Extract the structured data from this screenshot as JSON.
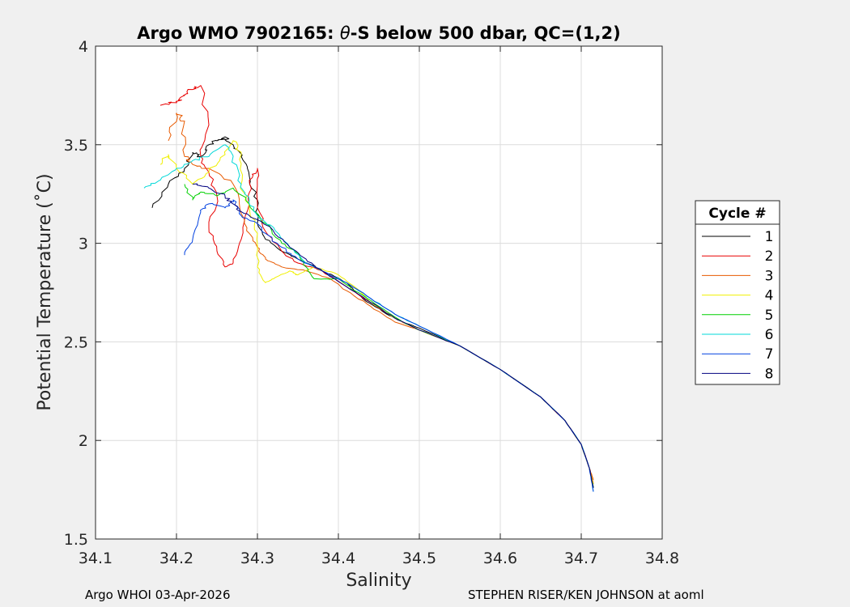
{
  "chart_data": {
    "type": "line",
    "title": "Argo WMO 7902165: θ-S below 500 dbar,  QC=(1,2)",
    "title_parts": {
      "prefix": "Argo WMO 7902165: ",
      "theta": "θ",
      "suffix": "-S below 500 dbar,  QC=(1,2)"
    },
    "xlabel": "Salinity",
    "ylabel": "Potential Temperature (˚C)",
    "xlim": [
      34.1,
      34.8
    ],
    "ylim": [
      1.5,
      4
    ],
    "xticks": [
      34.1,
      34.2,
      34.3,
      34.4,
      34.5,
      34.6,
      34.7,
      34.8
    ],
    "xtick_labels": [
      "34.1",
      "34.2",
      "34.3",
      "34.4",
      "34.5",
      "34.6",
      "34.7",
      "34.8"
    ],
    "yticks": [
      1.5,
      2,
      2.5,
      3,
      3.5,
      4
    ],
    "ytick_labels": [
      "1.5",
      "2",
      "2.5",
      "3",
      "3.5",
      "4"
    ],
    "grid": true,
    "legend": {
      "title": "Cycle #",
      "placement": "right"
    },
    "series": [
      {
        "name": "1",
        "color": "#000000",
        "points": [
          [
            34.17,
            3.18
          ],
          [
            34.19,
            3.3
          ],
          [
            34.21,
            3.38
          ],
          [
            34.22,
            3.46
          ],
          [
            34.23,
            3.44
          ],
          [
            34.24,
            3.5
          ],
          [
            34.25,
            3.52
          ],
          [
            34.26,
            3.54
          ],
          [
            34.27,
            3.5
          ],
          [
            34.28,
            3.44
          ],
          [
            34.29,
            3.34
          ],
          [
            34.3,
            3.22
          ],
          [
            34.3,
            3.1
          ],
          [
            34.31,
            3.02
          ],
          [
            34.33,
            2.96
          ],
          [
            34.35,
            2.92
          ],
          [
            34.38,
            2.86
          ],
          [
            34.41,
            2.8
          ],
          [
            34.43,
            2.72
          ],
          [
            34.46,
            2.64
          ],
          [
            34.48,
            2.6
          ],
          [
            34.5,
            2.57
          ],
          [
            34.55,
            2.48
          ],
          [
            34.6,
            2.36
          ],
          [
            34.65,
            2.22
          ],
          [
            34.68,
            2.1
          ],
          [
            34.7,
            1.98
          ],
          [
            34.71,
            1.86
          ],
          [
            34.715,
            1.76
          ]
        ]
      },
      {
        "name": "2",
        "color": "#e80000",
        "points": [
          [
            34.18,
            3.7
          ],
          [
            34.2,
            3.72
          ],
          [
            34.21,
            3.75
          ],
          [
            34.22,
            3.78
          ],
          [
            34.23,
            3.8
          ],
          [
            34.24,
            3.6
          ],
          [
            34.23,
            3.44
          ],
          [
            34.24,
            3.36
          ],
          [
            34.25,
            3.24
          ],
          [
            34.24,
            3.08
          ],
          [
            34.25,
            2.96
          ],
          [
            34.26,
            2.88
          ],
          [
            34.27,
            2.9
          ],
          [
            34.28,
            3.02
          ],
          [
            34.29,
            3.2
          ],
          [
            34.29,
            3.32
          ],
          [
            34.3,
            3.38
          ],
          [
            34.3,
            3.2
          ],
          [
            34.31,
            3.06
          ],
          [
            34.33,
            2.96
          ],
          [
            34.35,
            2.9
          ],
          [
            34.38,
            2.86
          ],
          [
            34.41,
            2.78
          ],
          [
            34.44,
            2.7
          ],
          [
            34.47,
            2.62
          ],
          [
            34.5,
            2.56
          ],
          [
            34.55,
            2.48
          ],
          [
            34.6,
            2.36
          ],
          [
            34.65,
            2.22
          ],
          [
            34.68,
            2.1
          ],
          [
            34.7,
            1.98
          ],
          [
            34.71,
            1.86
          ],
          [
            34.715,
            1.78
          ]
        ]
      },
      {
        "name": "3",
        "color": "#e85a00",
        "points": [
          [
            34.19,
            3.52
          ],
          [
            34.2,
            3.66
          ],
          [
            34.21,
            3.62
          ],
          [
            34.21,
            3.44
          ],
          [
            34.22,
            3.4
          ],
          [
            34.24,
            3.38
          ],
          [
            34.27,
            3.3
          ],
          [
            34.28,
            3.15
          ],
          [
            34.29,
            3.05
          ],
          [
            34.3,
            2.98
          ],
          [
            34.31,
            2.92
          ],
          [
            34.33,
            2.88
          ],
          [
            34.36,
            2.86
          ],
          [
            34.39,
            2.82
          ],
          [
            34.41,
            2.76
          ],
          [
            34.44,
            2.68
          ],
          [
            34.47,
            2.6
          ],
          [
            34.5,
            2.56
          ],
          [
            34.55,
            2.48
          ],
          [
            34.6,
            2.36
          ],
          [
            34.65,
            2.22
          ],
          [
            34.68,
            2.1
          ],
          [
            34.7,
            1.98
          ],
          [
            34.71,
            1.86
          ],
          [
            34.715,
            1.8
          ]
        ]
      },
      {
        "name": "4",
        "color": "#f0f000",
        "points": [
          [
            34.18,
            3.4
          ],
          [
            34.19,
            3.45
          ],
          [
            34.2,
            3.38
          ],
          [
            34.22,
            3.3
          ],
          [
            34.24,
            3.36
          ],
          [
            34.26,
            3.45
          ],
          [
            34.27,
            3.52
          ],
          [
            34.28,
            3.45
          ],
          [
            34.28,
            3.3
          ],
          [
            34.29,
            3.18
          ],
          [
            34.3,
            3.05
          ],
          [
            34.3,
            2.88
          ],
          [
            34.31,
            2.8
          ],
          [
            34.32,
            2.82
          ],
          [
            34.34,
            2.86
          ],
          [
            34.35,
            2.84
          ],
          [
            34.37,
            2.88
          ],
          [
            34.4,
            2.84
          ],
          [
            34.42,
            2.78
          ],
          [
            34.44,
            2.7
          ],
          [
            34.47,
            2.62
          ],
          [
            34.5,
            2.56
          ],
          [
            34.55,
            2.48
          ],
          [
            34.6,
            2.36
          ],
          [
            34.65,
            2.22
          ],
          [
            34.68,
            2.1
          ],
          [
            34.7,
            1.98
          ],
          [
            34.71,
            1.86
          ],
          [
            34.715,
            1.78
          ]
        ]
      },
      {
        "name": "5",
        "color": "#00d000",
        "points": [
          [
            34.21,
            3.3
          ],
          [
            34.22,
            3.22
          ],
          [
            34.23,
            3.26
          ],
          [
            34.25,
            3.24
          ],
          [
            34.27,
            3.28
          ],
          [
            34.29,
            3.2
          ],
          [
            34.31,
            3.1
          ],
          [
            34.33,
            3.0
          ],
          [
            34.35,
            2.95
          ],
          [
            34.36,
            2.88
          ],
          [
            34.37,
            2.82
          ],
          [
            34.4,
            2.82
          ],
          [
            34.42,
            2.76
          ],
          [
            34.45,
            2.68
          ],
          [
            34.48,
            2.6
          ],
          [
            34.5,
            2.56
          ],
          [
            34.55,
            2.48
          ],
          [
            34.6,
            2.36
          ],
          [
            34.65,
            2.22
          ],
          [
            34.68,
            2.1
          ],
          [
            34.7,
            1.98
          ],
          [
            34.71,
            1.86
          ],
          [
            34.715,
            1.76
          ]
        ]
      },
      {
        "name": "6",
        "color": "#00d8d8",
        "points": [
          [
            34.16,
            3.28
          ],
          [
            34.18,
            3.32
          ],
          [
            34.2,
            3.38
          ],
          [
            34.22,
            3.42
          ],
          [
            34.24,
            3.44
          ],
          [
            34.26,
            3.5
          ],
          [
            34.27,
            3.44
          ],
          [
            34.28,
            3.3
          ],
          [
            34.29,
            3.22
          ],
          [
            34.3,
            3.14
          ],
          [
            34.32,
            3.08
          ],
          [
            34.34,
            2.98
          ],
          [
            34.36,
            2.9
          ],
          [
            34.38,
            2.86
          ],
          [
            34.41,
            2.8
          ],
          [
            34.44,
            2.72
          ],
          [
            34.47,
            2.64
          ],
          [
            34.5,
            2.58
          ],
          [
            34.55,
            2.48
          ],
          [
            34.6,
            2.36
          ],
          [
            34.65,
            2.22
          ],
          [
            34.68,
            2.1
          ],
          [
            34.7,
            1.98
          ],
          [
            34.71,
            1.86
          ],
          [
            34.715,
            1.74
          ]
        ]
      },
      {
        "name": "7",
        "color": "#0040e0",
        "points": [
          [
            34.21,
            2.94
          ],
          [
            34.22,
            3.02
          ],
          [
            34.23,
            3.16
          ],
          [
            34.24,
            3.2
          ],
          [
            34.26,
            3.18
          ],
          [
            34.27,
            3.22
          ],
          [
            34.28,
            3.14
          ],
          [
            34.3,
            3.1
          ],
          [
            34.31,
            3.05
          ],
          [
            34.33,
            2.98
          ],
          [
            34.35,
            2.92
          ],
          [
            34.38,
            2.86
          ],
          [
            34.41,
            2.8
          ],
          [
            34.44,
            2.72
          ],
          [
            34.47,
            2.64
          ],
          [
            34.5,
            2.58
          ],
          [
            34.55,
            2.48
          ],
          [
            34.6,
            2.36
          ],
          [
            34.65,
            2.22
          ],
          [
            34.68,
            2.1
          ],
          [
            34.7,
            1.98
          ],
          [
            34.71,
            1.86
          ],
          [
            34.715,
            1.74
          ]
        ]
      },
      {
        "name": "8",
        "color": "#000080",
        "points": [
          [
            34.22,
            3.3
          ],
          [
            34.24,
            3.28
          ],
          [
            34.26,
            3.24
          ],
          [
            34.27,
            3.2
          ],
          [
            34.28,
            3.16
          ],
          [
            34.3,
            3.12
          ],
          [
            34.32,
            3.06
          ],
          [
            34.34,
            2.98
          ],
          [
            34.36,
            2.92
          ],
          [
            34.38,
            2.86
          ],
          [
            34.41,
            2.78
          ],
          [
            34.44,
            2.7
          ],
          [
            34.47,
            2.62
          ],
          [
            34.5,
            2.56
          ],
          [
            34.55,
            2.48
          ],
          [
            34.6,
            2.36
          ],
          [
            34.65,
            2.22
          ],
          [
            34.68,
            2.1
          ],
          [
            34.7,
            1.98
          ],
          [
            34.71,
            1.86
          ],
          [
            34.715,
            1.76
          ]
        ]
      }
    ]
  },
  "footer": {
    "left": "Argo WHOI 03-Apr-2026",
    "right": "STEPHEN RISER/KEN JOHNSON at aoml"
  }
}
